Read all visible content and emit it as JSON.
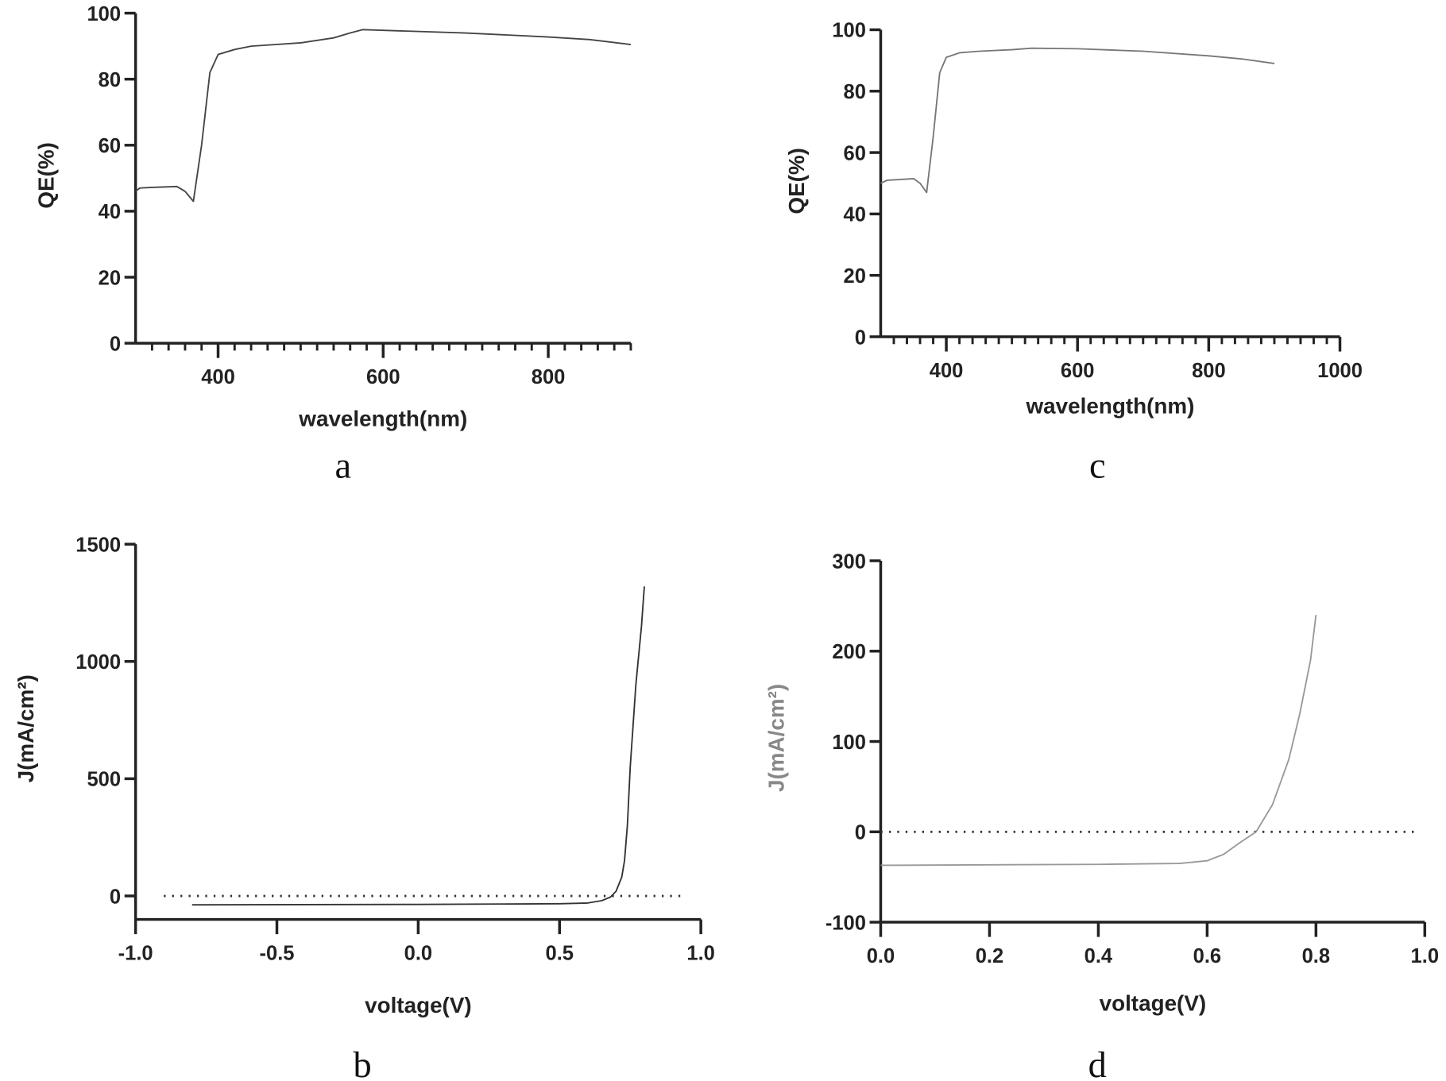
{
  "chart_data": [
    {
      "panel_label": "a",
      "type": "line",
      "xlabel": "wavelength(nm)",
      "ylabel": "QE(%)",
      "xlim": [
        300,
        900
      ],
      "ylim": [
        0,
        100
      ],
      "xticks": [
        400,
        600,
        800
      ],
      "x_minor_step": 20,
      "yticks": [
        0,
        20,
        40,
        60,
        80,
        100
      ],
      "grid": false,
      "line_color": "#444444",
      "label_color": "#222222",
      "series": [
        {
          "x": [
            300,
            305,
            320,
            350,
            360,
            370,
            380,
            390,
            400,
            420,
            440,
            500,
            540,
            560,
            575,
            600,
            700,
            800,
            850,
            900
          ],
          "y": [
            46,
            47,
            47.2,
            47.5,
            46,
            43,
            60,
            82,
            87.5,
            89,
            90,
            91,
            92.5,
            94,
            95,
            94.8,
            94,
            92.8,
            92,
            90.5
          ]
        }
      ]
    },
    {
      "panel_label": "b",
      "type": "line",
      "xlabel": "voltage(V)",
      "ylabel": "J(mA/cm²)",
      "xlim": [
        -1.0,
        1.0
      ],
      "ylim": [
        -100,
        1500
      ],
      "xticks": [
        "-1.0",
        "-0.5",
        "0.0",
        "0.5",
        "1.0"
      ],
      "yticks": [
        0,
        500,
        1000,
        1500
      ],
      "grid": false,
      "reference_line": {
        "y": 0,
        "style": "dotted",
        "x_range": [
          -0.9,
          0.95
        ]
      },
      "line_color": "#333333",
      "label_color": "#222222",
      "series": [
        {
          "x": [
            -0.8,
            0,
            0.5,
            0.6,
            0.65,
            0.68,
            0.7,
            0.72,
            0.73,
            0.74,
            0.75,
            0.77,
            0.79,
            0.8
          ],
          "y": [
            -38,
            -36,
            -33,
            -30,
            -20,
            -5,
            20,
            80,
            150,
            300,
            550,
            900,
            1150,
            1320
          ]
        }
      ]
    },
    {
      "panel_label": "c",
      "type": "line",
      "xlabel": "wavelength(nm)",
      "ylabel": "QE(%)",
      "xlim": [
        300,
        1000
      ],
      "ylim": [
        0,
        100
      ],
      "xticks": [
        400,
        600,
        800,
        1000
      ],
      "x_minor_step": 20,
      "yticks": [
        0,
        20,
        40,
        60,
        80,
        100
      ],
      "grid": false,
      "line_color": "#777777",
      "label_color": "#333333",
      "series": [
        {
          "x": [
            300,
            310,
            350,
            360,
            370,
            380,
            390,
            400,
            420,
            450,
            500,
            530,
            600,
            700,
            800,
            850,
            900
          ],
          "y": [
            50,
            51,
            51.5,
            50,
            47,
            65,
            86,
            91,
            92.5,
            93,
            93.5,
            94,
            93.8,
            93,
            91.5,
            90.5,
            89
          ]
        }
      ]
    },
    {
      "panel_label": "d",
      "type": "line",
      "xlabel": "voltage(V)",
      "ylabel": "J(mA/cm²)",
      "xlim": [
        0.0,
        1.0
      ],
      "ylim": [
        -100,
        300
      ],
      "xticks": [
        "0.0",
        "0.2",
        "0.4",
        "0.6",
        "0.8",
        "1.0"
      ],
      "yticks": [
        -100,
        0,
        100,
        200,
        300
      ],
      "grid": false,
      "reference_line": {
        "y": 0,
        "style": "dotted",
        "x_range": [
          0.0,
          0.99
        ]
      },
      "line_color": "#999999",
      "label_color": "#333333",
      "series": [
        {
          "x": [
            0,
            0.4,
            0.55,
            0.6,
            0.63,
            0.66,
            0.69,
            0.72,
            0.75,
            0.77,
            0.79,
            0.8
          ],
          "y": [
            -37,
            -36,
            -35,
            -32,
            -25,
            -12,
            0,
            30,
            80,
            130,
            190,
            240
          ]
        }
      ]
    }
  ]
}
